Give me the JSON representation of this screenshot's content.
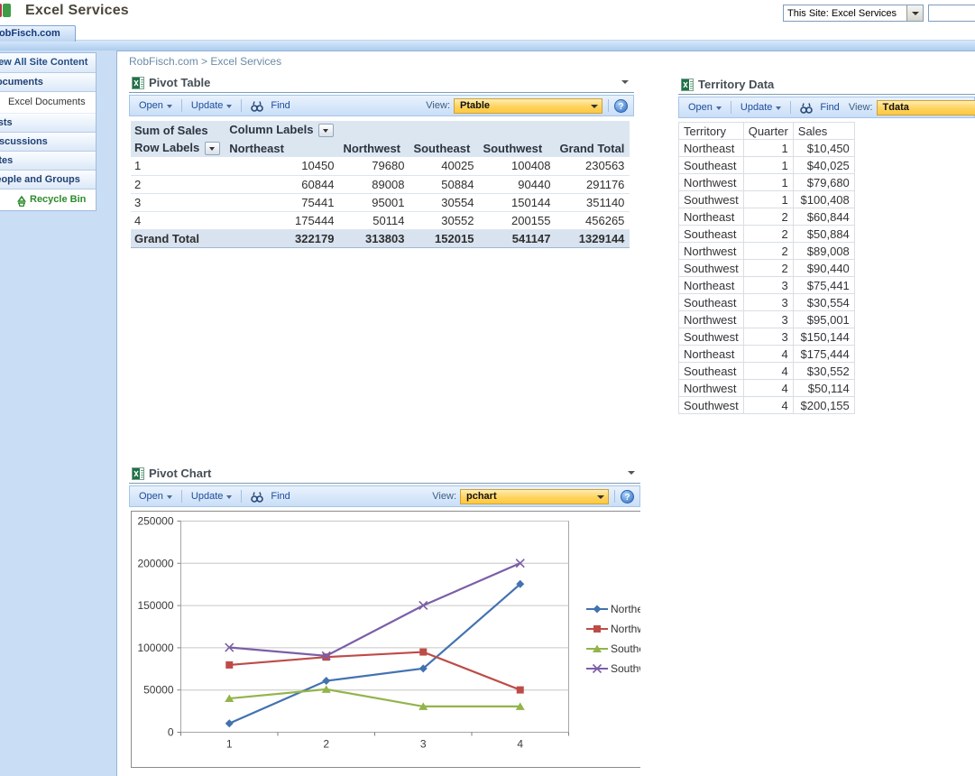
{
  "header": {
    "site_title": "Excel Services",
    "tab_label": "RobFisch.com",
    "site_scope_selector": "This Site: Excel Services",
    "search_value": ""
  },
  "sidebar": {
    "items": [
      {
        "label": "View All Site Content",
        "type": "toplink"
      },
      {
        "label": "Documents",
        "type": "header"
      },
      {
        "label": "Excel Documents",
        "type": "sub"
      },
      {
        "label": "Lists",
        "type": "header"
      },
      {
        "label": "Discussions",
        "type": "header"
      },
      {
        "label": "Sites",
        "type": "header"
      },
      {
        "label": "People and Groups",
        "type": "header"
      },
      {
        "label": "Recycle Bin",
        "type": "recycle"
      }
    ]
  },
  "breadcrumb": {
    "site": "RobFisch.com",
    "separator": ">",
    "page": "Excel Services"
  },
  "toolbar": {
    "open": "Open",
    "update": "Update",
    "find": "Find",
    "view_label": "View:"
  },
  "pivot_table": {
    "title": "Pivot Table",
    "view_value": "Ptable",
    "corner_label": "Sum of Sales",
    "column_labels_caption": "Column Labels",
    "row_labels_caption": "Row Labels",
    "columns": [
      "Northeast",
      "Northwest",
      "Southeast",
      "Southwest",
      "Grand Total"
    ],
    "rows": [
      {
        "label": "1",
        "values": [
          "10450",
          "79680",
          "40025",
          "100408",
          "230563"
        ],
        "is_total": false
      },
      {
        "label": "2",
        "values": [
          "60844",
          "89008",
          "50884",
          "90440",
          "291176"
        ],
        "is_total": false
      },
      {
        "label": "3",
        "values": [
          "75441",
          "95001",
          "30554",
          "150144",
          "351140"
        ],
        "is_total": false
      },
      {
        "label": "4",
        "values": [
          "175444",
          "50114",
          "30552",
          "200155",
          "456265"
        ],
        "is_total": false
      },
      {
        "label": "Grand Total",
        "values": [
          "322179",
          "313803",
          "152015",
          "541147",
          "1329144"
        ],
        "is_total": true
      }
    ]
  },
  "territory_data": {
    "title": "Territory Data",
    "view_value": "Tdata",
    "columns": [
      "Territory",
      "Quarter",
      "Sales"
    ],
    "rows": [
      [
        "Northeast",
        "1",
        "$10,450"
      ],
      [
        "Southeast",
        "1",
        "$40,025"
      ],
      [
        "Northwest",
        "1",
        "$79,680"
      ],
      [
        "Southwest",
        "1",
        "$100,408"
      ],
      [
        "Northeast",
        "2",
        "$60,844"
      ],
      [
        "Southeast",
        "2",
        "$50,884"
      ],
      [
        "Northwest",
        "2",
        "$89,008"
      ],
      [
        "Southwest",
        "2",
        "$90,440"
      ],
      [
        "Northeast",
        "3",
        "$75,441"
      ],
      [
        "Southeast",
        "3",
        "$30,554"
      ],
      [
        "Northwest",
        "3",
        "$95,001"
      ],
      [
        "Southwest",
        "3",
        "$150,144"
      ],
      [
        "Northeast",
        "4",
        "$175,444"
      ],
      [
        "Southeast",
        "4",
        "$30,552"
      ],
      [
        "Northwest",
        "4",
        "$50,114"
      ],
      [
        "Southwest",
        "4",
        "$200,155"
      ]
    ]
  },
  "pivot_chart": {
    "title": "Pivot Chart",
    "view_value": "pchart"
  },
  "chart_data": {
    "type": "line",
    "x": [
      1,
      2,
      3,
      4
    ],
    "xlabel": "",
    "ylabel": "",
    "ylim": [
      0,
      250000
    ],
    "yticks": [
      0,
      50000,
      100000,
      150000,
      200000,
      250000
    ],
    "grid": true,
    "legend_position": "right",
    "series": [
      {
        "name": "Northeast",
        "marker": "diamond",
        "color": "#4372B0",
        "values": [
          10450,
          60844,
          75441,
          175444
        ]
      },
      {
        "name": "Northwest",
        "marker": "square",
        "color": "#BE4B48",
        "values": [
          79680,
          89008,
          95001,
          50114
        ]
      },
      {
        "name": "Southeast",
        "marker": "triangle",
        "color": "#93B44B",
        "values": [
          40025,
          50884,
          30554,
          30552
        ]
      },
      {
        "name": "Southwest",
        "marker": "x",
        "color": "#7B5EA7",
        "values": [
          100408,
          90440,
          150144,
          200155
        ]
      }
    ]
  },
  "colors": {
    "view_dropdown_bg": "#FFD35E",
    "toolbar_link_blue": "#1E4C9C",
    "recycle_green": "#2E8B2E",
    "grid_line": "#C6C6C6"
  }
}
